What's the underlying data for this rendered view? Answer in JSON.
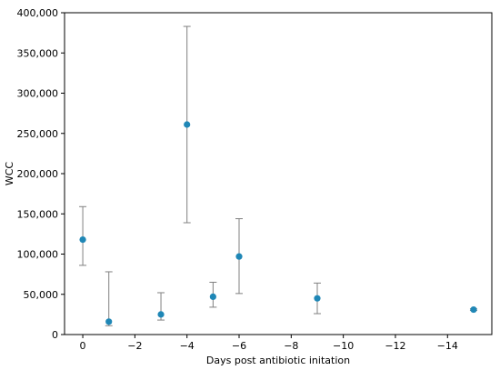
{
  "chart_data": {
    "type": "scatter",
    "title": "",
    "xlabel": "Days post antibiotic initation",
    "ylabel": "WCC",
    "x_axis_reversed": true,
    "xlim": [
      0.7,
      -15.7
    ],
    "ylim": [
      0,
      400000
    ],
    "x_ticks": [
      {
        "value": 0,
        "label": "0"
      },
      {
        "value": -2,
        "label": "−2"
      },
      {
        "value": -4,
        "label": "−4"
      },
      {
        "value": -6,
        "label": "−6"
      },
      {
        "value": -8,
        "label": "−8"
      },
      {
        "value": -10,
        "label": "−10"
      },
      {
        "value": -12,
        "label": "−12"
      },
      {
        "value": -14,
        "label": "−14"
      }
    ],
    "y_ticks": [
      {
        "value": 0,
        "label": "0"
      },
      {
        "value": 50000,
        "label": "50,000"
      },
      {
        "value": 100000,
        "label": "100,000"
      },
      {
        "value": 150000,
        "label": "150,000"
      },
      {
        "value": 200000,
        "label": "200,000"
      },
      {
        "value": 250000,
        "label": "250,000"
      },
      {
        "value": 300000,
        "label": "300,000"
      },
      {
        "value": 350000,
        "label": "350,000"
      },
      {
        "value": 400000,
        "label": "400,000"
      }
    ],
    "grid": false,
    "marker_color": "#1f87b6",
    "errorbar_color": "#808080",
    "points": [
      {
        "x": 0,
        "y": 118000,
        "low": 86000,
        "high": 159000
      },
      {
        "x": -1,
        "y": 16000,
        "low": 11000,
        "high": 78000
      },
      {
        "x": -3,
        "y": 25000,
        "low": 18000,
        "high": 52000
      },
      {
        "x": -4,
        "y": 261000,
        "low": 139000,
        "high": 383000
      },
      {
        "x": -5,
        "y": 47000,
        "low": 34000,
        "high": 65000
      },
      {
        "x": -6,
        "y": 97000,
        "low": 51000,
        "high": 144000
      },
      {
        "x": -9,
        "y": 45000,
        "low": 26000,
        "high": 64000
      },
      {
        "x": -15,
        "y": 31000,
        "low": 30000,
        "high": 32000
      }
    ]
  }
}
